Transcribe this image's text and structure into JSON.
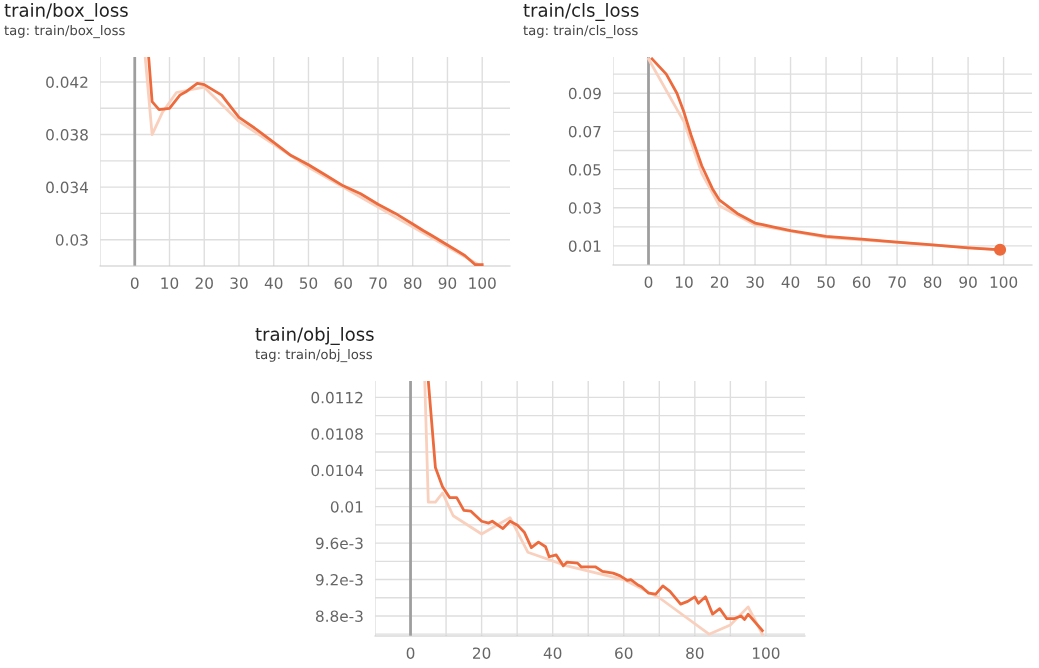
{
  "chart_data": [
    {
      "type": "line",
      "title": "train/box_loss",
      "subtitle": "tag: train/box_loss",
      "xlim": [
        -10,
        108
      ],
      "ylim": [
        0.028,
        0.0439
      ],
      "xticks": [
        {
          "value": -10,
          "label": null
        },
        0,
        10,
        20,
        30,
        40,
        50,
        60,
        70,
        80,
        90,
        100
      ],
      "yticks": [
        {
          "value": 0.03,
          "label": "0.03"
        },
        {
          "value": 0.032,
          "label": null
        },
        0.034,
        {
          "value": 0.036,
          "label": null
        },
        0.038,
        {
          "value": 0.04,
          "label": null
        },
        0.042
      ],
      "grid": true,
      "legend": false,
      "marker": "none",
      "line_style": "solid",
      "ref_lines": [
        {
          "axis": "x",
          "value": 0,
          "label": null,
          "color": "#9e9e9e"
        }
      ],
      "series": [
        {
          "color": "#f9d0bd",
          "x": [
            3,
            5,
            8,
            12,
            20,
            30,
            50,
            99
          ],
          "values": [
            0.0439,
            0.038,
            0.0397,
            0.0412,
            0.0416,
            0.039,
            0.0355,
            0.0281
          ]
        },
        {
          "color": "#ec6a3c",
          "x": [
            4,
            5,
            7,
            10,
            13,
            15,
            18,
            20,
            25,
            30,
            35,
            40,
            45,
            50,
            55,
            60,
            65,
            70,
            75,
            80,
            83,
            85,
            90,
            95,
            98,
            100
          ],
          "values": [
            0.0439,
            0.0405,
            0.0399,
            0.04,
            0.041,
            0.0413,
            0.0419,
            0.0418,
            0.041,
            0.0393,
            0.0384,
            0.0374,
            0.0364,
            0.0357,
            0.0349,
            0.0341,
            0.0335,
            0.0327,
            0.032,
            0.0312,
            0.0307,
            0.0304,
            0.0296,
            0.0288,
            0.0281,
            0.0281
          ]
        }
      ]
    },
    {
      "type": "line",
      "title": "train/cls_loss",
      "subtitle": "tag: train/cls_loss",
      "xlim": [
        -10,
        108
      ],
      "ylim": [
        0,
        0.109
      ],
      "xticks": [
        {
          "value": -10,
          "label": null
        },
        0,
        10,
        20,
        30,
        40,
        50,
        60,
        70,
        80,
        90,
        100
      ],
      "yticks": [
        0.01,
        {
          "value": 0.02,
          "label": null
        },
        0.03,
        {
          "value": 0.04,
          "label": null
        },
        0.05,
        {
          "value": 0.06,
          "label": null
        },
        0.07,
        {
          "value": 0.08,
          "label": null
        },
        0.09,
        {
          "value": 0.1,
          "label": null
        }
      ],
      "grid": true,
      "legend": false,
      "marker": "none",
      "line_style": "solid",
      "ref_lines": [
        {
          "axis": "x",
          "value": 0,
          "label": null,
          "color": "#9e9e9e"
        }
      ],
      "series": [
        {
          "color": "#f9d0bd",
          "x": [
            0,
            10,
            15,
            20,
            30,
            50,
            99
          ],
          "values": [
            0.108,
            0.075,
            0.048,
            0.031,
            0.021,
            0.0145,
            0.008
          ]
        },
        {
          "color": "#ec6a3c",
          "x": [
            1,
            5,
            8,
            10,
            12,
            15,
            18,
            20,
            25,
            30,
            35,
            40,
            50,
            60,
            70,
            80,
            90,
            99
          ],
          "values": [
            0.108,
            0.1,
            0.09,
            0.08,
            0.068,
            0.052,
            0.04,
            0.034,
            0.027,
            0.022,
            0.02,
            0.018,
            0.015,
            0.0135,
            0.012,
            0.0105,
            0.009,
            0.008
          ]
        },
        {
          "type": "scatter",
          "marker": "circle",
          "color": "#ec6a3c",
          "x": [
            99
          ],
          "values": [
            0.008
          ]
        }
      ]
    },
    {
      "type": "line",
      "title": "train/obj_loss",
      "subtitle": "tag: train/obj_loss",
      "xlim": [
        -10,
        111
      ],
      "ylim": [
        0.00858,
        0.01138
      ],
      "xticks": [
        {
          "value": -10,
          "label": null
        },
        0,
        {
          "value": 10,
          "label": null
        },
        20,
        {
          "value": 30,
          "label": null
        },
        40,
        {
          "value": 50,
          "label": null
        },
        60,
        {
          "value": 70,
          "label": null
        },
        80,
        {
          "value": 90,
          "label": null
        },
        100
      ],
      "yticks": [
        {
          "value": 0.0086,
          "label": null
        },
        {
          "value": 0.0088,
          "label": "8.8e-3"
        },
        {
          "value": 0.009,
          "label": null
        },
        {
          "value": 0.0092,
          "label": "9.2e-3"
        },
        {
          "value": 0.0094,
          "label": null
        },
        {
          "value": 0.0096,
          "label": "9.6e-3"
        },
        {
          "value": 0.0098,
          "label": null
        },
        {
          "value": 0.01,
          "label": "0.01"
        },
        {
          "value": 0.0102,
          "label": null
        },
        0.0104,
        {
          "value": 0.0106,
          "label": null
        },
        0.0108,
        {
          "value": 0.011,
          "label": null
        },
        0.0112
      ],
      "grid": true,
      "legend": false,
      "marker": "none",
      "line_style": "solid",
      "ref_lines": [
        {
          "axis": "x",
          "value": 0,
          "label": null,
          "color": "#9e9e9e"
        }
      ],
      "series": [
        {
          "color": "#f9d0bd",
          "x": [
            4,
            5,
            7,
            9,
            12,
            20,
            28,
            33,
            44,
            60,
            70,
            84,
            90,
            95,
            99
          ],
          "values": [
            0.01138,
            0.01005,
            0.01005,
            0.01015,
            0.0099,
            0.0097,
            0.00988,
            0.0095,
            0.00935,
            0.0092,
            0.009,
            0.0086,
            0.0087,
            0.0089,
            0.0086
          ]
        },
        {
          "color": "#ec6a3c",
          "x": [
            5,
            7,
            9,
            11,
            13,
            15,
            17,
            20,
            22,
            23,
            26,
            28,
            30,
            32,
            34,
            36,
            38,
            39,
            41,
            43,
            44,
            47,
            48,
            50,
            52,
            54,
            57,
            59,
            61,
            62,
            64,
            65,
            67,
            69,
            71,
            73,
            76,
            78,
            80,
            81,
            83,
            85,
            87,
            89,
            91,
            93,
            94,
            95,
            97,
            99
          ],
          "values": [
            0.01138,
            0.01043,
            0.01022,
            0.0101,
            0.0101,
            0.00996,
            0.00995,
            0.00984,
            0.00982,
            0.00984,
            0.00976,
            0.00984,
            0.0098,
            0.00972,
            0.00955,
            0.00961,
            0.00956,
            0.00945,
            0.00947,
            0.00935,
            0.00939,
            0.00938,
            0.00934,
            0.00934,
            0.00934,
            0.00929,
            0.00927,
            0.00924,
            0.00919,
            0.0092,
            0.00914,
            0.00912,
            0.00905,
            0.00904,
            0.00913,
            0.00907,
            0.00893,
            0.00896,
            0.00901,
            0.00894,
            0.00901,
            0.00882,
            0.00888,
            0.00877,
            0.00877,
            0.0088,
            0.00876,
            0.00882,
            0.00873,
            0.00864
          ]
        }
      ]
    }
  ]
}
